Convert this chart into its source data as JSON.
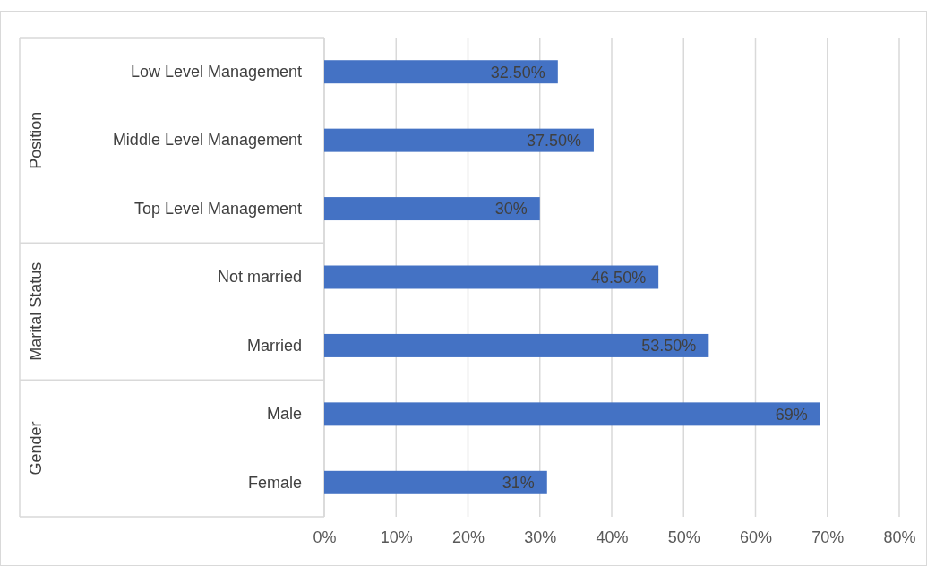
{
  "chart_data": {
    "type": "bar",
    "orientation": "horizontal",
    "categories": [
      "Low Level Management",
      "Middle Level Management",
      "Top Level Management",
      "Not married",
      "Married",
      "Male",
      "Female"
    ],
    "values": [
      32.5,
      37.5,
      30,
      46.5,
      53.5,
      69,
      31
    ],
    "value_labels": [
      "32.50%",
      "37.50%",
      "30%",
      "46.50%",
      "53.50%",
      "69%",
      "31%"
    ],
    "color": "#4472c4",
    "xlim": [
      0,
      80
    ],
    "xticks": [
      {
        "value": 0,
        "label": "0%"
      },
      {
        "value": 10,
        "label": "10%"
      },
      {
        "value": 20,
        "label": "20%"
      },
      {
        "value": 30,
        "label": "30%"
      },
      {
        "value": 40,
        "label": "40%"
      },
      {
        "value": 50,
        "label": "50%"
      },
      {
        "value": 60,
        "label": "60%"
      },
      {
        "value": 70,
        "label": "70%"
      },
      {
        "value": 80,
        "label": "80%"
      }
    ],
    "grid": "x",
    "annotations": [
      "Position",
      "Marital Status",
      "Gender"
    ]
  }
}
